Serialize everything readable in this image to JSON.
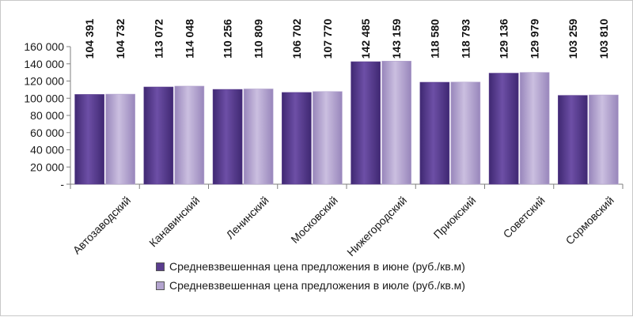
{
  "colors": {
    "june": "#5a3d8e",
    "july": "#b3a4cf"
  },
  "legend": {
    "june": "Средневзвешенная цена предложения в июне (руб./кв.м)",
    "july": "Средневзвешенная цена предложения в июле (руб./кв.м)"
  },
  "chart_data": {
    "type": "bar",
    "categories": [
      "Автозаводский",
      "Канавинский",
      "Ленинский",
      "Московский",
      "Нижегородский",
      "Приокский",
      "Советский",
      "Сормовский"
    ],
    "series": [
      {
        "name": "Средневзвешенная цена предложения в июне (руб./кв.м)",
        "values": [
          104391,
          113072,
          110256,
          106702,
          142485,
          118580,
          129136,
          103259
        ]
      },
      {
        "name": "Средневзвешенная цена предложения в июле (руб./кв.м)",
        "values": [
          104732,
          114048,
          110809,
          107770,
          143159,
          118793,
          129979,
          103810
        ]
      }
    ],
    "value_labels": [
      [
        "104 391",
        "113 072",
        "110 256",
        "106 702",
        "142 485",
        "118 580",
        "129 136",
        "103 259"
      ],
      [
        "104 732",
        "114 048",
        "110 809",
        "107 770",
        "143 159",
        "118 793",
        "129 979",
        "103 810"
      ]
    ],
    "ylim": [
      0,
      160000
    ],
    "yticks": [
      0,
      20000,
      40000,
      60000,
      80000,
      100000,
      120000,
      140000,
      160000
    ],
    "ytick_labels": [
      "-",
      "20 000",
      "40 000",
      "60 000",
      "80 000",
      "100 000",
      "120 000",
      "140 000",
      "160 000"
    ],
    "grid": false,
    "legend_position": "bottom"
  }
}
